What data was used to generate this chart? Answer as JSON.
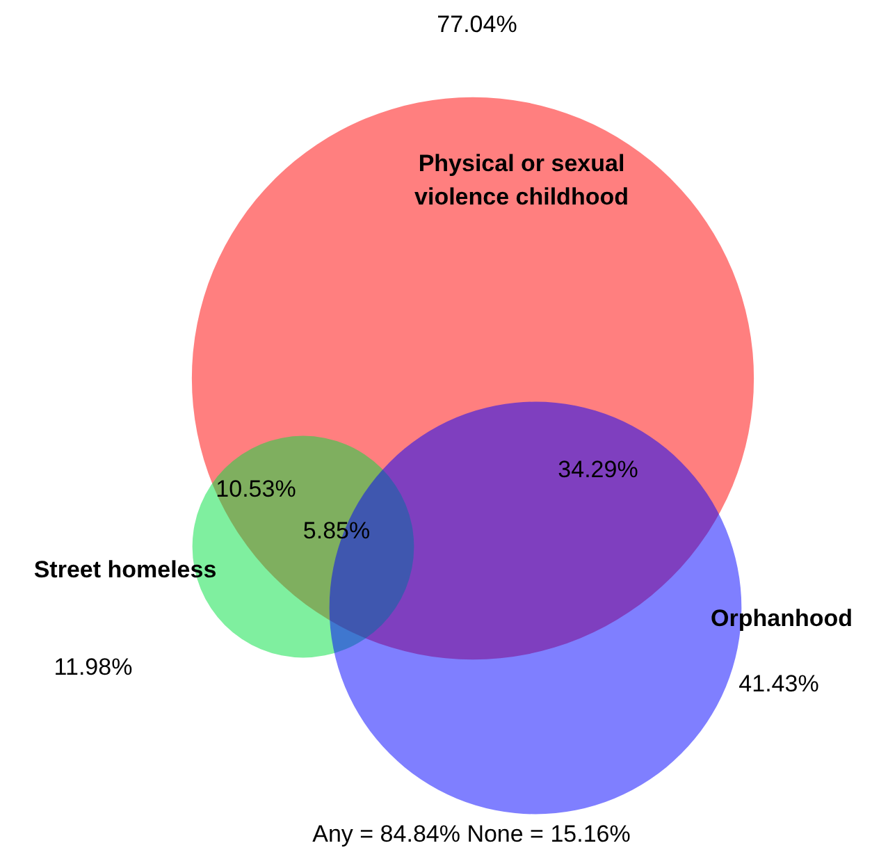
{
  "chart_data": {
    "type": "other",
    "categories": [
      "Physical or sexual violence childhood",
      "Orphanhood",
      "Street homeless"
    ],
    "values": [
      77.04,
      41.43,
      11.98
    ],
    "value_labels": [
      "77.04%",
      "41.43%",
      "11.98%"
    ],
    "colors": [
      "#ff0000",
      "#0000ff",
      "#00e040"
    ],
    "annotations": [
      "10.53%",
      "34.29%",
      "5.85%",
      "Any = 84.84%  None = 15.16%"
    ]
  }
}
